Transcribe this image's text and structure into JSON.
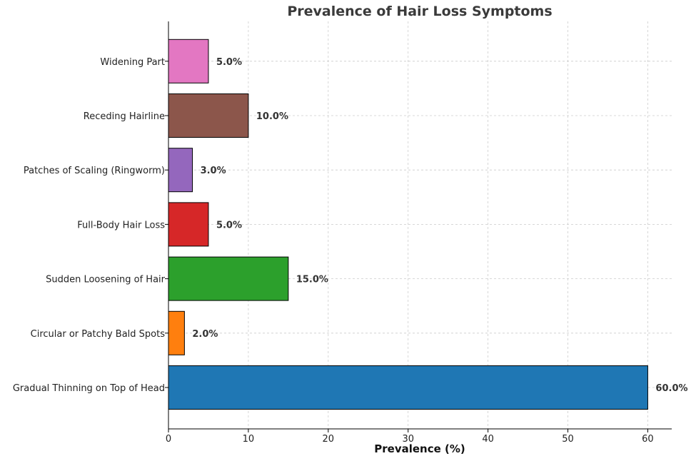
{
  "chart_data": {
    "type": "bar",
    "orientation": "horizontal",
    "title": "Prevalence of Hair Loss Symptoms",
    "xlabel": "Prevalence (%)",
    "ylabel": "",
    "xlim": [
      0,
      63
    ],
    "xticks": [
      0,
      10,
      20,
      30,
      40,
      50,
      60
    ],
    "xtick_labels": [
      "0",
      "10",
      "20",
      "30",
      "40",
      "50",
      "60"
    ],
    "grid": true,
    "categories": [
      "Gradual Thinning on Top of Head",
      "Circular or Patchy Bald Spots",
      "Sudden Loosening of Hair",
      "Full-Body Hair Loss",
      "Patches of Scaling (Ringworm)",
      "Receding Hairline",
      "Widening Part"
    ],
    "values": [
      60,
      2,
      15,
      5,
      3,
      10,
      5
    ],
    "value_labels": [
      "60.0%",
      "2.0%",
      "15.0%",
      "5.0%",
      "3.0%",
      "10.0%",
      "5.0%"
    ],
    "colors": [
      "#1f77b4",
      "#ff7f0e",
      "#2ca02c",
      "#d62728",
      "#9467bd",
      "#8c564b",
      "#e377c2"
    ]
  }
}
